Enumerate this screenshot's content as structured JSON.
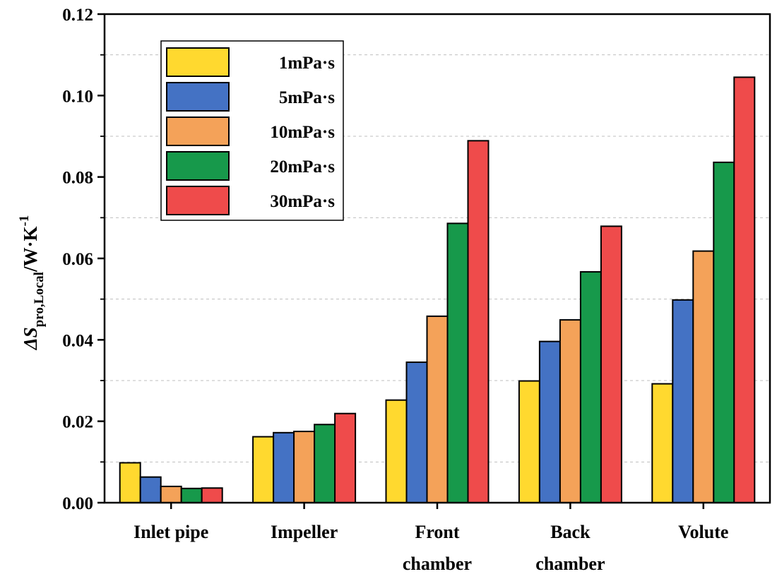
{
  "chart_data": {
    "type": "bar",
    "title": "",
    "xlabel": "",
    "ylabel": {
      "prefix": "ΔS",
      "subscript": "pro,Local",
      "units_main": "/W·K",
      "units_sup": "-1"
    },
    "ylim": [
      0,
      0.12
    ],
    "yticks": [
      0.0,
      0.02,
      0.04,
      0.06,
      0.08,
      0.1,
      0.12
    ],
    "ytick_labels": [
      "0.00",
      "0.02",
      "0.04",
      "0.06",
      "0.08",
      "0.10",
      "0.12"
    ],
    "grid": true,
    "legend_position": "top-left",
    "categories": [
      [
        "Inlet pipe"
      ],
      [
        "Impeller"
      ],
      [
        "Front",
        "chamber"
      ],
      [
        "Back",
        "chamber"
      ],
      [
        "Volute"
      ]
    ],
    "series": [
      {
        "name": "1mPa·s",
        "color": "#FFD92F",
        "values": [
          0.0098,
          0.0162,
          0.0252,
          0.0299,
          0.0292
        ]
      },
      {
        "name": "5mPa·s",
        "color": "#4472C4",
        "values": [
          0.0063,
          0.0172,
          0.0345,
          0.0396,
          0.0498
        ]
      },
      {
        "name": "10mPa·s",
        "color": "#F4A259",
        "values": [
          0.004,
          0.0175,
          0.0458,
          0.0449,
          0.0618
        ]
      },
      {
        "name": "20mPa·s",
        "color": "#17994B",
        "values": [
          0.0035,
          0.0192,
          0.0686,
          0.0567,
          0.0836
        ]
      },
      {
        "name": "30mPa·s",
        "color": "#EF4B4B",
        "values": [
          0.0036,
          0.0219,
          0.0889,
          0.0679,
          0.1045
        ]
      }
    ]
  }
}
